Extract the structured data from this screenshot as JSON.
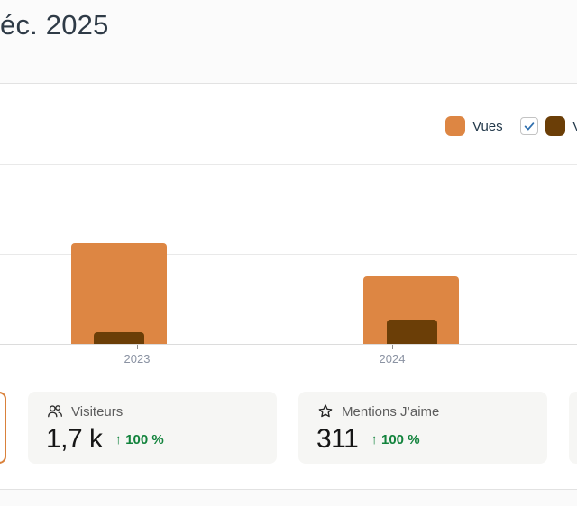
{
  "page": {
    "title": "éc. 2025"
  },
  "legend": {
    "items": [
      {
        "label": "Vues",
        "color": "#DD8643",
        "has_checkbox": false
      },
      {
        "label": "V",
        "color": "#6B3E07",
        "has_checkbox": true,
        "checked": true
      }
    ]
  },
  "chart_data": {
    "type": "bar",
    "categories": [
      "2023",
      "2024"
    ],
    "series": [
      {
        "name": "Vues",
        "color": "#DD8643",
        "values": [
          1120,
          750
        ]
      },
      {
        "name": "V",
        "color": "#6B3E07",
        "values": [
          130,
          270
        ]
      }
    ],
    "title": "",
    "xlabel": "",
    "ylabel": "",
    "ylim": [
      0,
      2000
    ],
    "gridline_values": [
      1000,
      2000
    ],
    "grid": true,
    "legend_position": "top-right",
    "y_axis_labels_visible": false,
    "values_estimated": true
  },
  "cards": [
    {
      "type": "selected-partial"
    },
    {
      "icon": "people-icon",
      "label": "Visiteurs",
      "value": "1,7 k",
      "change": "↑ 100 %"
    },
    {
      "icon": "star-icon",
      "label": "Mentions J’aime",
      "value": "311",
      "change": "↑ 100 %"
    },
    {
      "type": "partial-right"
    }
  ],
  "colors": {
    "accent_orange": "#DD8643",
    "accent_brown": "#6B3E07",
    "positive_green": "#12833C",
    "checkbox_blue": "#2F6FAE",
    "selected_card_border": "#D9813B"
  }
}
